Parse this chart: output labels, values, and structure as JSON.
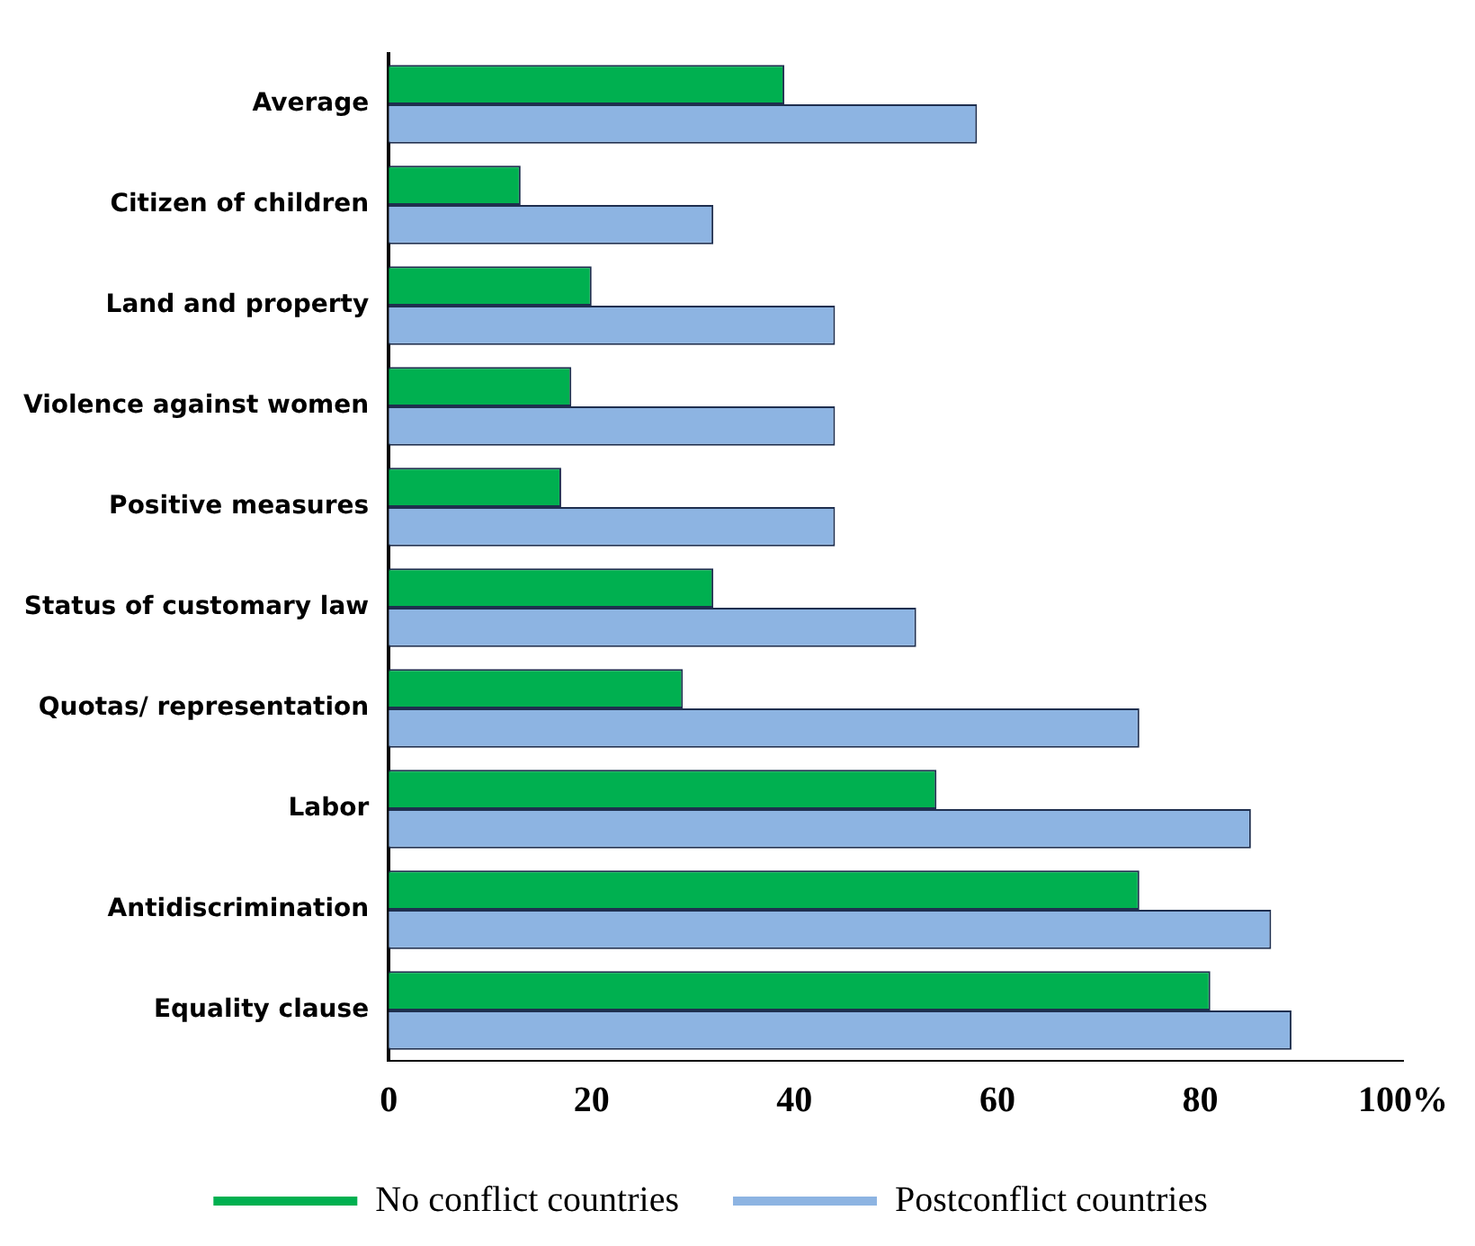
{
  "chart_data": {
    "type": "bar",
    "orientation": "horizontal",
    "categories": [
      "Average",
      "Citizen of children",
      "Land and property",
      "Violence against women",
      "Positive measures",
      "Status of customary law",
      "Quotas/ representation",
      "Labor",
      "Antidiscrimination",
      "Equality clause"
    ],
    "series": [
      {
        "name": "No conflict countries",
        "color": "#00b050",
        "values": [
          39,
          13,
          20,
          18,
          17,
          32,
          29,
          54,
          74,
          81
        ]
      },
      {
        "name": "Postconflict countries",
        "color": "#8db4e2",
        "values": [
          58,
          32,
          44,
          44,
          44,
          52,
          74,
          85,
          87,
          89
        ]
      }
    ],
    "xlim": [
      0,
      100
    ],
    "xticks": [
      0,
      20,
      40,
      60,
      80,
      {
        "value": 100,
        "label": "100%"
      }
    ],
    "grid": false,
    "legend": "bottom"
  }
}
